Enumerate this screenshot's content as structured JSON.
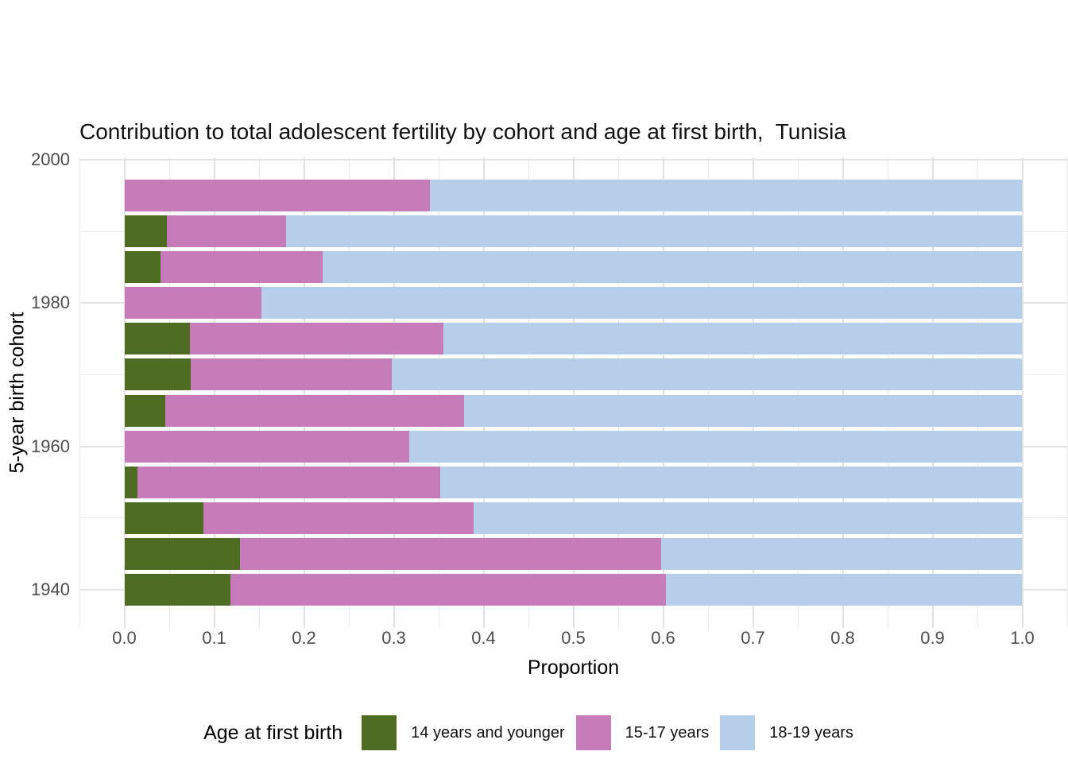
{
  "page": {
    "background": "#ffffff"
  },
  "chart_data": {
    "type": "bar",
    "orientation": "horizontal",
    "stacked": true,
    "title": "Contribution to total adolescent fertility by cohort and age at first birth,  Tunisia",
    "xlabel": "Proportion",
    "ylabel": "5-year birth cohort",
    "xlim": [
      -0.05,
      1.05
    ],
    "x_ticks": [
      0.0,
      0.1,
      0.2,
      0.3,
      0.4,
      0.5,
      0.6,
      0.7,
      0.8,
      0.9,
      1.0
    ],
    "x_tick_labels": [
      "0.0",
      "0.1",
      "0.2",
      "0.3",
      "0.4",
      "0.5",
      "0.6",
      "0.7",
      "0.8",
      "0.9",
      "1.0"
    ],
    "y_ticks": [
      2000,
      1980,
      1960,
      1940
    ],
    "y_minor_ticks": [
      1990,
      1970,
      1950
    ],
    "grid": true,
    "legend_position": "bottom",
    "legend_title": "Age at first birth",
    "series": [
      {
        "name": "14 years and younger",
        "color": "#4D6C21"
      },
      {
        "name": "15-17 years",
        "color": "#C77CBA"
      },
      {
        "name": "18-19 years",
        "color": "#B7CEEA"
      }
    ],
    "rows": [
      {
        "cohort": 1995,
        "values": [
          0.0,
          0.34,
          0.66
        ]
      },
      {
        "cohort": 1990,
        "values": [
          0.047,
          0.133,
          0.82
        ]
      },
      {
        "cohort": 1985,
        "values": [
          0.04,
          0.181,
          0.779
        ]
      },
      {
        "cohort": 1980,
        "values": [
          0.0,
          0.153,
          0.847
        ]
      },
      {
        "cohort": 1975,
        "values": [
          0.073,
          0.282,
          0.645
        ]
      },
      {
        "cohort": 1970,
        "values": [
          0.074,
          0.224,
          0.702
        ]
      },
      {
        "cohort": 1965,
        "values": [
          0.046,
          0.332,
          0.622
        ]
      },
      {
        "cohort": 1960,
        "values": [
          0.0,
          0.317,
          0.683
        ]
      },
      {
        "cohort": 1955,
        "values": [
          0.015,
          0.337,
          0.648
        ]
      },
      {
        "cohort": 1950,
        "values": [
          0.088,
          0.301,
          0.611
        ]
      },
      {
        "cohort": 1945,
        "values": [
          0.129,
          0.469,
          0.402
        ]
      },
      {
        "cohort": 1940,
        "values": [
          0.118,
          0.485,
          0.397
        ]
      }
    ],
    "colors": {
      "grid_major": "#E2E2E2",
      "grid_minor": "#EBEBEB",
      "tick_label": "#4D4D4D",
      "text": "#000000"
    }
  }
}
